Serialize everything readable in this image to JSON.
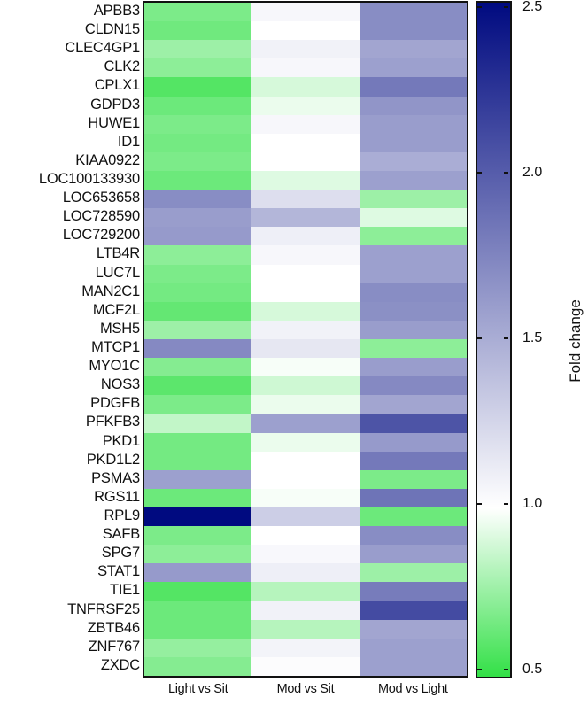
{
  "chart_data": {
    "type": "heatmap",
    "title": "",
    "xlabel": "",
    "ylabel": "",
    "columns": [
      "Light vs Sit",
      "Mod vs Sit",
      "Mod vs Light"
    ],
    "rows": [
      "APBB3",
      "CLDN15",
      "CLEC4GP1",
      "CLK2",
      "CPLX1",
      "GDPD3",
      "HUWE1",
      "ID1",
      "KIAA0922",
      "LOC100133930",
      "LOC653658",
      "LOC728590",
      "LOC729200",
      "LTB4R",
      "LUC7L",
      "MAN2C1",
      "MCF2L",
      "MSH5",
      "MTCP1",
      "MYO1C",
      "NOS3",
      "PDGFB",
      "PFKFB3",
      "PKD1",
      "PKD1L2",
      "PSMA3",
      "RGS11",
      "RPL9",
      "SAFB",
      "SPG7",
      "STAT1",
      "TIE1",
      "TNFRSF25",
      "ZBTB46",
      "ZNF767",
      "ZXDC"
    ],
    "values": [
      [
        0.68,
        1.05,
        1.7
      ],
      [
        0.65,
        1.0,
        1.7
      ],
      [
        0.76,
        1.08,
        1.55
      ],
      [
        0.72,
        1.05,
        1.58
      ],
      [
        0.58,
        0.9,
        1.82
      ],
      [
        0.64,
        0.95,
        1.65
      ],
      [
        0.68,
        1.05,
        1.6
      ],
      [
        0.66,
        1.0,
        1.6
      ],
      [
        0.68,
        1.0,
        1.5
      ],
      [
        0.64,
        0.92,
        1.58
      ],
      [
        1.7,
        1.2,
        0.76
      ],
      [
        1.6,
        1.45,
        0.92
      ],
      [
        1.62,
        1.1,
        0.72
      ],
      [
        0.72,
        1.05,
        1.58
      ],
      [
        0.68,
        1.0,
        1.58
      ],
      [
        0.66,
        1.0,
        1.7
      ],
      [
        0.62,
        0.9,
        1.68
      ],
      [
        0.76,
        1.08,
        1.6
      ],
      [
        1.72,
        1.15,
        0.72
      ],
      [
        0.7,
        0.98,
        1.6
      ],
      [
        0.6,
        0.88,
        1.72
      ],
      [
        0.68,
        0.95,
        1.55
      ],
      [
        0.85,
        1.58,
        2.05
      ],
      [
        0.66,
        0.95,
        1.62
      ],
      [
        0.66,
        1.0,
        1.82
      ],
      [
        1.58,
        1.0,
        0.68
      ],
      [
        0.64,
        0.98,
        1.85
      ],
      [
        2.5,
        1.3,
        0.64
      ],
      [
        0.68,
        1.0,
        1.7
      ],
      [
        0.72,
        1.04,
        1.6
      ],
      [
        1.62,
        1.1,
        0.76
      ],
      [
        0.58,
        0.82,
        1.8
      ],
      [
        0.64,
        1.08,
        2.1
      ],
      [
        0.64,
        0.82,
        1.55
      ],
      [
        0.74,
        1.07,
        1.58
      ],
      [
        0.7,
        1.02,
        1.58
      ]
    ],
    "colorbar": {
      "label": "Fold change",
      "range": [
        0.5,
        2.5
      ],
      "ticks": [
        0.5,
        1.0,
        1.5,
        2.0,
        2.5
      ],
      "tick_labels": [
        "0.5",
        "1.0",
        "1.5",
        "2.0",
        "2.5"
      ],
      "colors": {
        "low": "#33e047",
        "mid": "#ffffff",
        "high": "#000a80"
      }
    },
    "grid": false,
    "legend_position": "right"
  }
}
